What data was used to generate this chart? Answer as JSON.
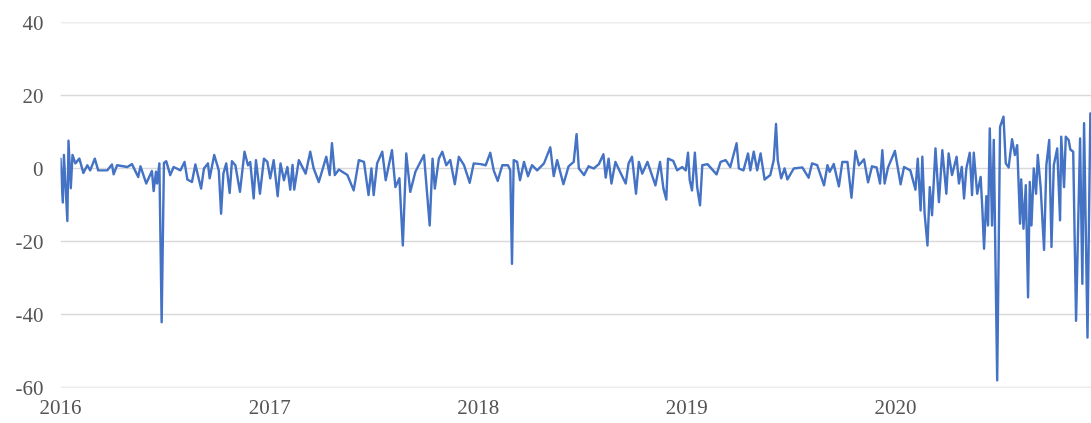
{
  "chart_data": {
    "type": "line",
    "x": [
      "2016-01-01",
      "2016-01-05",
      "2016-01-07",
      "2016-01-13",
      "2016-01-15",
      "2016-01-19",
      "2016-01-22",
      "2016-01-27",
      "2016-02-03",
      "2016-02-10",
      "2016-02-17",
      "2016-02-22",
      "2016-03-01",
      "2016-03-07",
      "2016-03-23",
      "2016-03-31",
      "2016-04-03",
      "2016-04-09",
      "2016-04-27",
      "2016-05-05",
      "2016-05-16",
      "2016-05-20",
      "2016-05-30",
      "2016-06-09",
      "2016-06-12",
      "2016-06-16",
      "2016-06-18",
      "2016-06-22",
      "2016-06-26",
      "2016-06-30",
      "2016-07-04",
      "2016-07-11",
      "2016-07-17",
      "2016-07-29",
      "2016-08-05",
      "2016-08-10",
      "2016-08-18",
      "2016-08-24",
      "2016-09-03",
      "2016-09-08",
      "2016-09-15",
      "2016-09-18",
      "2016-09-26",
      "2016-10-04",
      "2016-10-08",
      "2016-10-12",
      "2016-10-17",
      "2016-10-23",
      "2016-10-27",
      "2016-11-02",
      "2016-11-10",
      "2016-11-18",
      "2016-11-24",
      "2016-11-28",
      "2016-12-04",
      "2016-12-08",
      "2016-12-15",
      "2016-12-22",
      "2016-12-28",
      "2017-01-02",
      "2017-01-08",
      "2017-01-15",
      "2017-01-20",
      "2017-01-26",
      "2017-02-01",
      "2017-02-06",
      "2017-02-10",
      "2017-02-13",
      "2017-02-21",
      "2017-03-05",
      "2017-03-13",
      "2017-03-19",
      "2017-03-28",
      "2017-04-10",
      "2017-04-16",
      "2017-04-20",
      "2017-04-25",
      "2017-05-02",
      "2017-05-17",
      "2017-05-28",
      "2017-06-06",
      "2017-06-15",
      "2017-06-23",
      "2017-06-28",
      "2017-07-02",
      "2017-07-08",
      "2017-07-17",
      "2017-07-23",
      "2017-08-03",
      "2017-08-09",
      "2017-08-16",
      "2017-08-22",
      "2017-08-28",
      "2017-09-04",
      "2017-09-13",
      "2017-09-28",
      "2017-10-08",
      "2017-10-13",
      "2017-10-17",
      "2017-10-24",
      "2017-10-30",
      "2017-11-06",
      "2017-11-13",
      "2017-11-21",
      "2017-11-28",
      "2017-12-07",
      "2017-12-17",
      "2017-12-24",
      "2018-01-05",
      "2018-01-14",
      "2018-01-22",
      "2018-01-28",
      "2018-02-04",
      "2018-02-12",
      "2018-02-22",
      "2018-02-26",
      "2018-03-01",
      "2018-03-04",
      "2018-03-10",
      "2018-03-15",
      "2018-03-22",
      "2018-03-29",
      "2018-04-05",
      "2018-04-14",
      "2018-04-26",
      "2018-05-07",
      "2018-05-13",
      "2018-05-19",
      "2018-05-30",
      "2018-06-08",
      "2018-06-17",
      "2018-06-22",
      "2018-06-26",
      "2018-07-05",
      "2018-07-13",
      "2018-07-22",
      "2018-07-31",
      "2018-08-08",
      "2018-08-12",
      "2018-08-17",
      "2018-08-22",
      "2018-08-29",
      "2018-09-06",
      "2018-09-16",
      "2018-09-21",
      "2018-09-27",
      "2018-10-04",
      "2018-10-09",
      "2018-10-15",
      "2018-10-24",
      "2018-11-07",
      "2018-11-15",
      "2018-11-21",
      "2018-11-26",
      "2018-11-29",
      "2018-12-08",
      "2018-12-15",
      "2018-12-24",
      "2018-12-30",
      "2019-01-03",
      "2019-01-06",
      "2019-01-10",
      "2019-01-15",
      "2019-01-19",
      "2019-01-24",
      "2019-01-28",
      "2019-02-06",
      "2019-02-22",
      "2019-03-01",
      "2019-03-10",
      "2019-03-18",
      "2019-03-29",
      "2019-04-02",
      "2019-04-10",
      "2019-04-18",
      "2019-04-22",
      "2019-04-28",
      "2019-05-04",
      "2019-05-10",
      "2019-05-17",
      "2019-05-27",
      "2019-06-02",
      "2019-06-06",
      "2019-06-09",
      "2019-06-15",
      "2019-06-21",
      "2019-06-26",
      "2019-07-07",
      "2019-07-22",
      "2019-08-02",
      "2019-08-08",
      "2019-08-17",
      "2019-08-29",
      "2019-09-04",
      "2019-09-08",
      "2019-09-15",
      "2019-09-24",
      "2019-09-30",
      "2019-10-09",
      "2019-10-16",
      "2019-10-23",
      "2019-10-29",
      "2019-11-07",
      "2019-11-14",
      "2019-11-21",
      "2019-11-29",
      "2019-12-05",
      "2019-12-09",
      "2019-12-13",
      "2019-12-19",
      "2019-12-31",
      "2020-01-10",
      "2020-01-16",
      "2020-01-27",
      "2020-02-05",
      "2020-02-09",
      "2020-02-14",
      "2020-02-17",
      "2020-02-21",
      "2020-02-26",
      "2020-03-01",
      "2020-03-05",
      "2020-03-11",
      "2020-03-17",
      "2020-03-23",
      "2020-03-30",
      "2020-04-03",
      "2020-04-09",
      "2020-04-17",
      "2020-04-21",
      "2020-04-26",
      "2020-04-30",
      "2020-05-04",
      "2020-05-10",
      "2020-05-14",
      "2020-05-17",
      "2020-05-23",
      "2020-05-29",
      "2020-06-01",
      "2020-06-04",
      "2020-06-08",
      "2020-06-11",
      "2020-06-14",
      "2020-06-18",
      "2020-06-21",
      "2020-06-24",
      "2020-06-27",
      "2020-07-02",
      "2020-07-08",
      "2020-07-12",
      "2020-07-17",
      "2020-07-23",
      "2020-07-28",
      "2020-08-01",
      "2020-08-06",
      "2020-08-08",
      "2020-08-12",
      "2020-08-16",
      "2020-08-20",
      "2020-08-23",
      "2020-08-26",
      "2020-08-30",
      "2020-09-03",
      "2020-09-06",
      "2020-09-11",
      "2020-09-17",
      "2020-09-21",
      "2020-09-26",
      "2020-09-30",
      "2020-10-04",
      "2020-10-10",
      "2020-10-15",
      "2020-10-17",
      "2020-10-22",
      "2020-10-25",
      "2020-10-30",
      "2020-11-02",
      "2020-11-07",
      "2020-11-12",
      "2020-11-19",
      "2020-11-23",
      "2020-11-26",
      "2020-12-02",
      "2020-12-07"
    ],
    "series": [
      {
        "color": "#4472c4",
        "values": [
          2.7,
          -9.3,
          3.7,
          -14.4,
          7.6,
          -5.4,
          3.7,
          1.4,
          2.7,
          -1.2,
          0.9,
          -0.5,
          2.7,
          -0.5,
          -0.5,
          1.1,
          -1.6,
          0.9,
          0.4,
          1.2,
          -2.3,
          0.6,
          -4.1,
          -0.7,
          -6.2,
          -0.9,
          -4.1,
          1.4,
          -42.1,
          1.5,
          2.0,
          -1.8,
          0.4,
          -0.5,
          1.8,
          -3.0,
          -3.7,
          1.1,
          -5.5,
          0,
          1.4,
          -2.7,
          3.7,
          -0.5,
          -12.4,
          -1.4,
          1.4,
          -6.7,
          2.0,
          0.9,
          -6.4,
          4.6,
          0.9,
          1.8,
          -8.2,
          2.3,
          -6.9,
          2.7,
          1.8,
          -2.7,
          2.3,
          -7.6,
          1.4,
          -3.2,
          0.4,
          -5.8,
          1.0,
          -5.8,
          2.3,
          -1.4,
          4.6,
          0,
          -3.7,
          3.2,
          -1.8,
          6.9,
          -1.8,
          -0.3,
          -1.8,
          -6.0,
          2.3,
          1.8,
          -7.3,
          0,
          -7.3,
          1.4,
          4.6,
          -3.2,
          5.0,
          -5.1,
          -2.7,
          -21.1,
          4.1,
          -6.4,
          -0.9,
          3.7,
          -15.6,
          2.7,
          -5.5,
          2.7,
          4.6,
          0.9,
          2.3,
          -4.3,
          3.2,
          0.9,
          -3.9,
          1.4,
          1.2,
          0.9,
          4.3,
          -0.5,
          -3.4,
          0.9,
          0.9,
          -0.5,
          -26.1,
          2.3,
          1.8,
          -3.2,
          1.8,
          -2.1,
          0.9,
          -0.5,
          1.4,
          5.8,
          -2.1,
          2.3,
          -4.3,
          0.6,
          1.8,
          9.4,
          0,
          -1.8,
          0.6,
          0,
          1.2,
          3.9,
          -2.5,
          2.7,
          -4.1,
          1.8,
          -0.9,
          -4.1,
          1.4,
          3.2,
          -6.9,
          1.8,
          -1.4,
          1.8,
          -4.6,
          1.8,
          -5.5,
          -8.5,
          2.7,
          2.1,
          -0.5,
          0.4,
          -0.5,
          4.3,
          -3.2,
          -6.0,
          4.3,
          -5.1,
          -10.1,
          0.9,
          1.2,
          -1.6,
          1.8,
          2.3,
          0.4,
          6.9,
          0,
          -0.5,
          4.1,
          -0.5,
          4.6,
          -0.5,
          4.1,
          -3.0,
          -1.8,
          2.3,
          12.2,
          2.3,
          -2.7,
          0,
          -3.0,
          0,
          0.3,
          -2.5,
          1.4,
          0.9,
          -4.6,
          0.9,
          -0.9,
          1.2,
          -4.9,
          1.8,
          1.8,
          -8.0,
          4.8,
          0.9,
          2.5,
          -3.8,
          0.6,
          0.3,
          -4.1,
          5.0,
          -4.1,
          0.3,
          4.8,
          -4.3,
          0.4,
          -0.5,
          -5.8,
          2.7,
          -11.5,
          3.2,
          -12.4,
          -21.1,
          -5.1,
          -12.8,
          5.5,
          -9.2,
          5.0,
          -6.9,
          4.1,
          -1.8,
          3.2,
          -4.1,
          0.4,
          -8.2,
          0,
          4.3,
          -7.3,
          4.3,
          -6.9,
          -2.3,
          -11.0,
          -22.0,
          -7.6,
          -15.6,
          11.0,
          -15.6,
          7.8,
          -25.7,
          -58.0,
          11.4,
          14.2,
          1.4,
          0.3,
          8.0,
          3.7,
          6.4,
          -15.1,
          -3.0,
          -16.5,
          -4.6,
          -35.3,
          -3.7,
          -15.6,
          0,
          -6.9,
          3.7,
          -5.1,
          -22.3,
          0.9,
          7.8,
          -21.5,
          0.9,
          5.5,
          -14.2,
          8.7,
          -5.1,
          8.7,
          7.8,
          5.2,
          4.6,
          -41.7,
          8.2,
          -31.6,
          12.4,
          -46.3,
          15.1
        ]
      }
    ],
    "xlim": [
      "2016-01-01",
      "2020-12-09"
    ],
    "ylim": [
      -60,
      40
    ],
    "xticks": [
      "2016",
      "2017",
      "2018",
      "2019",
      "2020"
    ],
    "yticks": [
      -60,
      -40,
      -20,
      0,
      20,
      40
    ],
    "grid": "y"
  }
}
